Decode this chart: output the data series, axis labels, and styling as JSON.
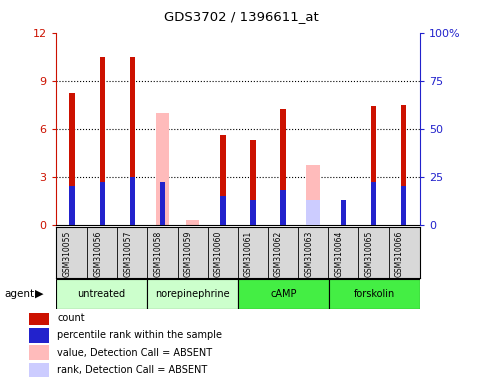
{
  "title": "GDS3702 / 1396611_at",
  "samples": [
    "GSM310055",
    "GSM310056",
    "GSM310057",
    "GSM310058",
    "GSM310059",
    "GSM310060",
    "GSM310061",
    "GSM310062",
    "GSM310063",
    "GSM310064",
    "GSM310065",
    "GSM310066"
  ],
  "count_values": [
    8.2,
    10.5,
    10.5,
    null,
    null,
    5.6,
    5.3,
    7.2,
    null,
    null,
    7.4,
    7.5
  ],
  "rank_values": [
    20,
    22,
    25,
    22,
    null,
    15,
    13,
    18,
    null,
    13,
    22,
    20
  ],
  "absent_count": [
    null,
    null,
    null,
    7.0,
    0.3,
    null,
    null,
    null,
    3.7,
    null,
    null,
    null
  ],
  "absent_rank": [
    null,
    null,
    null,
    null,
    null,
    null,
    null,
    null,
    13,
    null,
    null,
    null
  ],
  "ylim": [
    0,
    12
  ],
  "y2lim": [
    0,
    100
  ],
  "yticks": [
    0,
    3,
    6,
    9,
    12
  ],
  "y2ticks": [
    0,
    25,
    50,
    75,
    100
  ],
  "count_color": "#cc1100",
  "rank_color": "#2222cc",
  "absent_count_color": "#ffbbbb",
  "absent_rank_color": "#ccccff",
  "group_boundaries": [
    {
      "label": "untreated",
      "start": 0,
      "end": 3,
      "color": "#ccffcc"
    },
    {
      "label": "norepinephrine",
      "start": 3,
      "end": 6,
      "color": "#ccffcc"
    },
    {
      "label": "cAMP",
      "start": 6,
      "end": 9,
      "color": "#44ee44"
    },
    {
      "label": "forskolin",
      "start": 9,
      "end": 12,
      "color": "#44ee44"
    }
  ],
  "legend": [
    {
      "label": "count",
      "color": "#cc1100"
    },
    {
      "label": "percentile rank within the sample",
      "color": "#2222cc"
    },
    {
      "label": "value, Detection Call = ABSENT",
      "color": "#ffbbbb"
    },
    {
      "label": "rank, Detection Call = ABSENT",
      "color": "#ccccff"
    }
  ]
}
